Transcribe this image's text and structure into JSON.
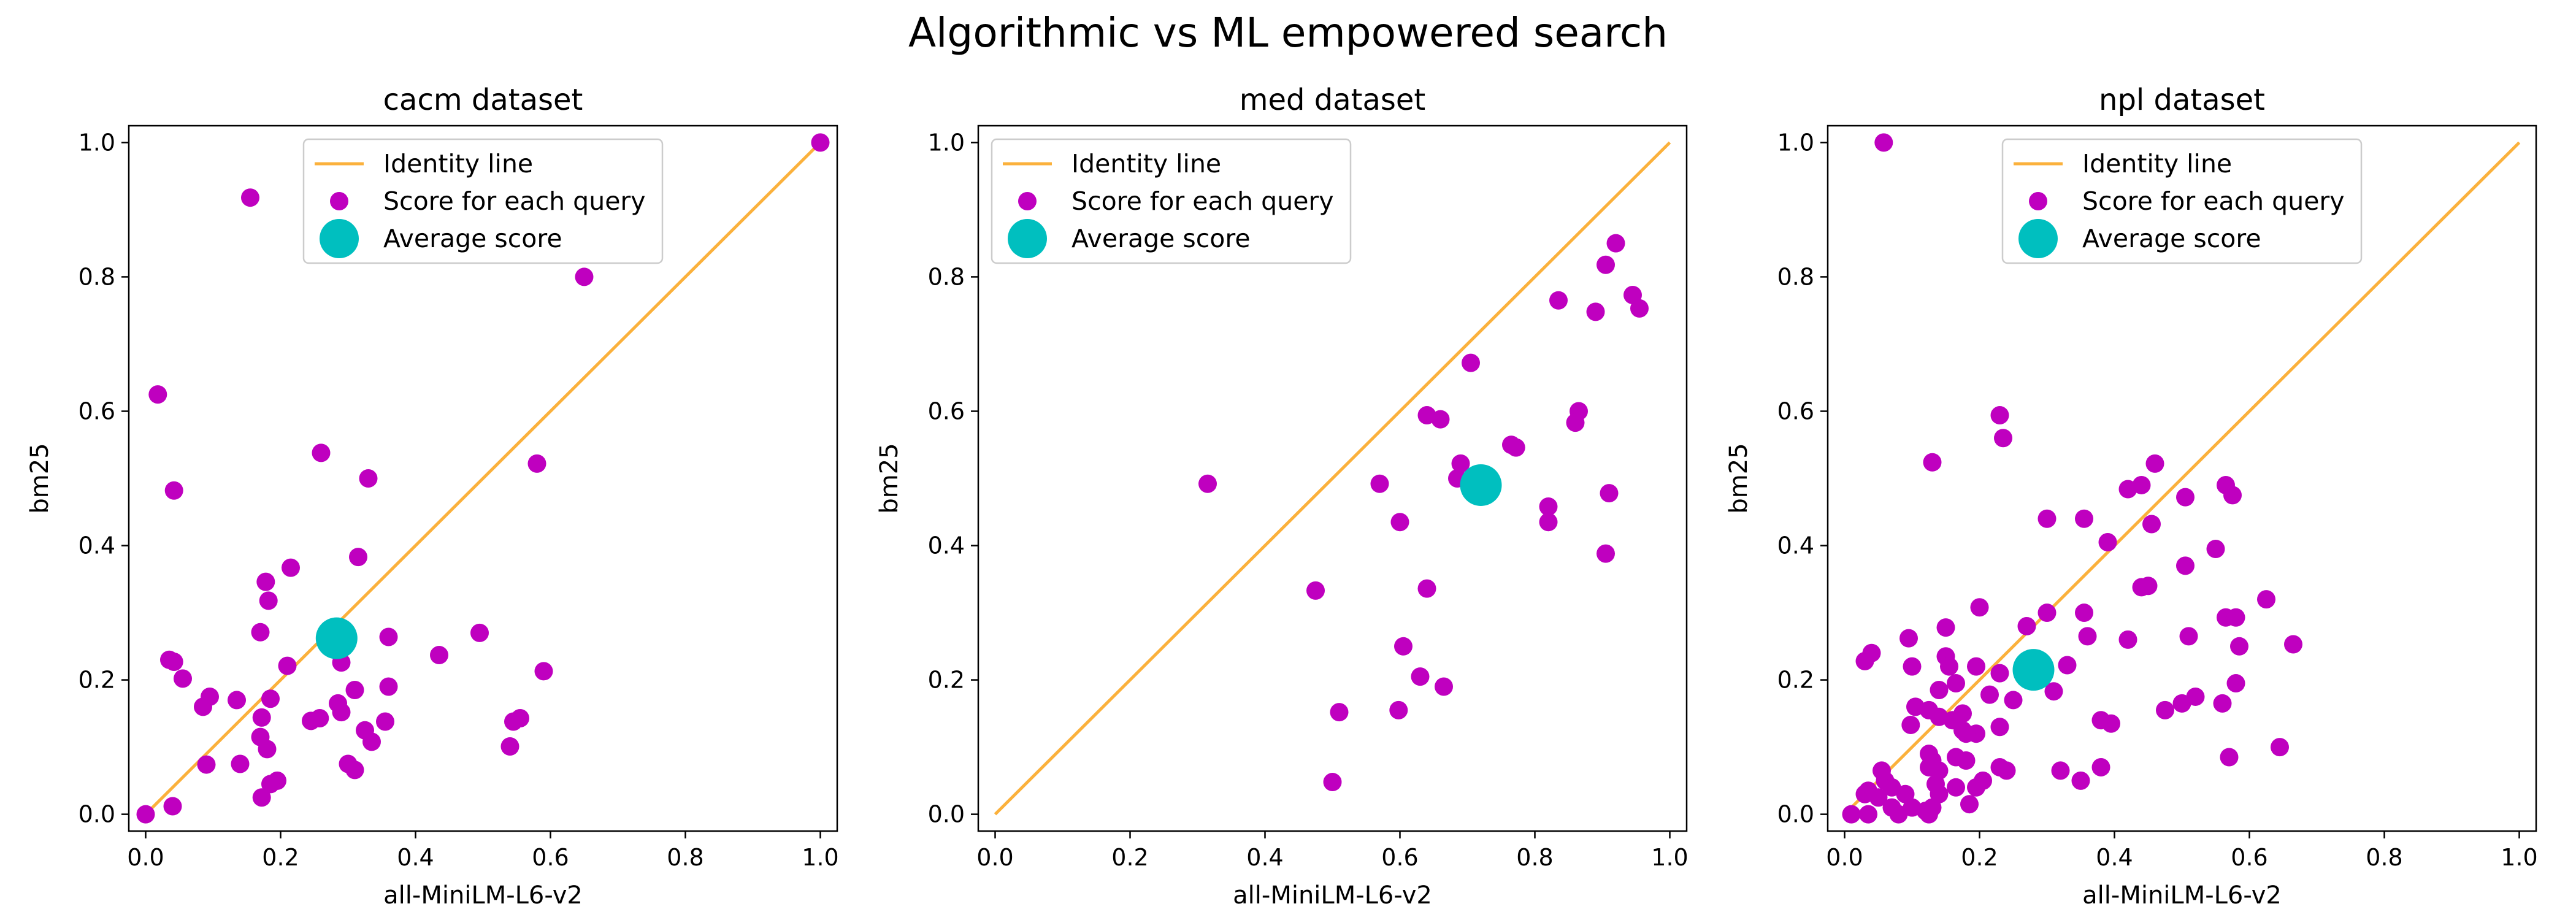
{
  "figure": {
    "title": "Algorithmic vs ML empowered search"
  },
  "colors": {
    "identity": "#FBB13C",
    "scores": "#BF00BF",
    "average": "#00BFBF",
    "frame": "#000000",
    "legend_border": "#CCCCCC"
  },
  "chart_data": [
    {
      "type": "scatter",
      "title": "cacm dataset",
      "xlabel": "all-MiniLM-L6-v2",
      "ylabel": "bm25",
      "xlim": [
        -0.025,
        1.025
      ],
      "ylim": [
        -0.025,
        1.025
      ],
      "xticks": [
        "0.0",
        "0.2",
        "0.4",
        "0.6",
        "0.8",
        "1.0"
      ],
      "yticks": [
        "0.0",
        "0.2",
        "0.4",
        "0.6",
        "0.8",
        "1.0"
      ],
      "grid": false,
      "legend": {
        "placement": "top-center",
        "entries": [
          "Identity line",
          "Score for each query",
          "Average score"
        ]
      },
      "identity_line": {
        "name": "Identity line",
        "points": [
          [
            0,
            0
          ],
          [
            1,
            1
          ]
        ]
      },
      "series": [
        {
          "name": "Score for each query",
          "points": [
            [
              0.0,
              0.0
            ],
            [
              1.0,
              1.0
            ],
            [
              0.155,
              0.918
            ],
            [
              0.65,
              0.8
            ],
            [
              0.018,
              0.625
            ],
            [
              0.042,
              0.482
            ],
            [
              0.26,
              0.538
            ],
            [
              0.33,
              0.5
            ],
            [
              0.58,
              0.522
            ],
            [
              0.315,
              0.383
            ],
            [
              0.215,
              0.367
            ],
            [
              0.178,
              0.346
            ],
            [
              0.182,
              0.318
            ],
            [
              0.17,
              0.271
            ],
            [
              0.36,
              0.264
            ],
            [
              0.495,
              0.27
            ],
            [
              0.435,
              0.237
            ],
            [
              0.035,
              0.23
            ],
            [
              0.042,
              0.227
            ],
            [
              0.055,
              0.202
            ],
            [
              0.21,
              0.221
            ],
            [
              0.29,
              0.226
            ],
            [
              0.59,
              0.213
            ],
            [
              0.36,
              0.19
            ],
            [
              0.31,
              0.185
            ],
            [
              0.135,
              0.17
            ],
            [
              0.095,
              0.175
            ],
            [
              0.085,
              0.16
            ],
            [
              0.185,
              0.172
            ],
            [
              0.285,
              0.165
            ],
            [
              0.172,
              0.144
            ],
            [
              0.245,
              0.139
            ],
            [
              0.258,
              0.143
            ],
            [
              0.29,
              0.152
            ],
            [
              0.355,
              0.138
            ],
            [
              0.545,
              0.138
            ],
            [
              0.555,
              0.143
            ],
            [
              0.17,
              0.115
            ],
            [
              0.18,
              0.097
            ],
            [
              0.325,
              0.125
            ],
            [
              0.335,
              0.108
            ],
            [
              0.54,
              0.101
            ],
            [
              0.09,
              0.074
            ],
            [
              0.14,
              0.075
            ],
            [
              0.3,
              0.075
            ],
            [
              0.31,
              0.066
            ],
            [
              0.195,
              0.05
            ],
            [
              0.185,
              0.045
            ],
            [
              0.172,
              0.025
            ],
            [
              0.04,
              0.012
            ]
          ]
        },
        {
          "name": "Average score",
          "points": [
            [
              0.283,
              0.262
            ]
          ]
        }
      ]
    },
    {
      "type": "scatter",
      "title": "med dataset",
      "xlabel": "all-MiniLM-L6-v2",
      "ylabel": "bm25",
      "xlim": [
        -0.025,
        1.025
      ],
      "ylim": [
        -0.025,
        1.025
      ],
      "xticks": [
        "0.0",
        "0.2",
        "0.4",
        "0.6",
        "0.8",
        "1.0"
      ],
      "yticks": [
        "0.0",
        "0.2",
        "0.4",
        "0.6",
        "0.8",
        "1.0"
      ],
      "grid": false,
      "legend": {
        "placement": "top-left",
        "entries": [
          "Identity line",
          "Score for each query",
          "Average score"
        ]
      },
      "identity_line": {
        "name": "Identity line",
        "points": [
          [
            0,
            0
          ],
          [
            1,
            1
          ]
        ]
      },
      "series": [
        {
          "name": "Score for each query",
          "points": [
            [
              0.92,
              0.85
            ],
            [
              0.905,
              0.818
            ],
            [
              0.945,
              0.773
            ],
            [
              0.955,
              0.753
            ],
            [
              0.835,
              0.765
            ],
            [
              0.89,
              0.748
            ],
            [
              0.705,
              0.672
            ],
            [
              0.64,
              0.594
            ],
            [
              0.66,
              0.588
            ],
            [
              0.865,
              0.6
            ],
            [
              0.86,
              0.583
            ],
            [
              0.765,
              0.55
            ],
            [
              0.772,
              0.546
            ],
            [
              0.69,
              0.522
            ],
            [
              0.685,
              0.5
            ],
            [
              0.57,
              0.492
            ],
            [
              0.315,
              0.492
            ],
            [
              0.91,
              0.478
            ],
            [
              0.82,
              0.458
            ],
            [
              0.82,
              0.435
            ],
            [
              0.6,
              0.435
            ],
            [
              0.905,
              0.388
            ],
            [
              0.64,
              0.336
            ],
            [
              0.475,
              0.333
            ],
            [
              0.605,
              0.25
            ],
            [
              0.63,
              0.205
            ],
            [
              0.665,
              0.19
            ],
            [
              0.51,
              0.152
            ],
            [
              0.598,
              0.155
            ],
            [
              0.5,
              0.048
            ]
          ]
        },
        {
          "name": "Average score",
          "points": [
            [
              0.72,
              0.49
            ]
          ]
        }
      ]
    },
    {
      "type": "scatter",
      "title": "npl dataset",
      "xlabel": "all-MiniLM-L6-v2",
      "ylabel": "bm25",
      "xlim": [
        -0.025,
        1.025
      ],
      "ylim": [
        -0.025,
        1.025
      ],
      "xticks": [
        "0.0",
        "0.2",
        "0.4",
        "0.6",
        "0.8",
        "1.0"
      ],
      "yticks": [
        "0.0",
        "0.2",
        "0.4",
        "0.6",
        "0.8",
        "1.0"
      ],
      "grid": false,
      "legend": {
        "placement": "top-center",
        "entries": [
          "Identity line",
          "Score for each query",
          "Average score"
        ]
      },
      "identity_line": {
        "name": "Identity line",
        "points": [
          [
            0,
            0
          ],
          [
            1,
            1
          ]
        ]
      },
      "series": [
        {
          "name": "Score for each query",
          "points": [
            [
              0.058,
              1.0
            ],
            [
              0.23,
              0.594
            ],
            [
              0.235,
              0.56
            ],
            [
              0.13,
              0.524
            ],
            [
              0.46,
              0.522
            ],
            [
              0.565,
              0.49
            ],
            [
              0.575,
              0.475
            ],
            [
              0.42,
              0.484
            ],
            [
              0.44,
              0.49
            ],
            [
              0.505,
              0.472
            ],
            [
              0.3,
              0.44
            ],
            [
              0.355,
              0.44
            ],
            [
              0.455,
              0.432
            ],
            [
              0.39,
              0.405
            ],
            [
              0.55,
              0.395
            ],
            [
              0.505,
              0.37
            ],
            [
              0.44,
              0.338
            ],
            [
              0.45,
              0.34
            ],
            [
              0.625,
              0.32
            ],
            [
              0.2,
              0.308
            ],
            [
              0.3,
              0.3
            ],
            [
              0.355,
              0.3
            ],
            [
              0.565,
              0.293
            ],
            [
              0.58,
              0.293
            ],
            [
              0.15,
              0.278
            ],
            [
              0.27,
              0.28
            ],
            [
              0.36,
              0.265
            ],
            [
              0.095,
              0.262
            ],
            [
              0.42,
              0.26
            ],
            [
              0.51,
              0.265
            ],
            [
              0.585,
              0.25
            ],
            [
              0.665,
              0.253
            ],
            [
              0.04,
              0.24
            ],
            [
              0.03,
              0.228
            ],
            [
              0.15,
              0.235
            ],
            [
              0.1,
              0.22
            ],
            [
              0.155,
              0.22
            ],
            [
              0.195,
              0.22
            ],
            [
              0.23,
              0.21
            ],
            [
              0.33,
              0.222
            ],
            [
              0.58,
              0.195
            ],
            [
              0.14,
              0.185
            ],
            [
              0.165,
              0.195
            ],
            [
              0.215,
              0.178
            ],
            [
              0.25,
              0.17
            ],
            [
              0.31,
              0.183
            ],
            [
              0.52,
              0.175
            ],
            [
              0.5,
              0.165
            ],
            [
              0.475,
              0.155
            ],
            [
              0.56,
              0.165
            ],
            [
              0.105,
              0.16
            ],
            [
              0.125,
              0.155
            ],
            [
              0.14,
              0.145
            ],
            [
              0.16,
              0.14
            ],
            [
              0.175,
              0.15
            ],
            [
              0.195,
              0.12
            ],
            [
              0.23,
              0.13
            ],
            [
              0.38,
              0.14
            ],
            [
              0.395,
              0.135
            ],
            [
              0.098,
              0.133
            ],
            [
              0.175,
              0.125
            ],
            [
              0.18,
              0.12
            ],
            [
              0.125,
              0.09
            ],
            [
              0.13,
              0.08
            ],
            [
              0.125,
              0.07
            ],
            [
              0.14,
              0.065
            ],
            [
              0.165,
              0.085
            ],
            [
              0.18,
              0.08
            ],
            [
              0.23,
              0.07
            ],
            [
              0.24,
              0.065
            ],
            [
              0.32,
              0.065
            ],
            [
              0.38,
              0.07
            ],
            [
              0.57,
              0.085
            ],
            [
              0.645,
              0.1
            ],
            [
              0.055,
              0.065
            ],
            [
              0.06,
              0.05
            ],
            [
              0.07,
              0.04
            ],
            [
              0.09,
              0.03
            ],
            [
              0.135,
              0.045
            ],
            [
              0.14,
              0.03
            ],
            [
              0.165,
              0.04
            ],
            [
              0.195,
              0.04
            ],
            [
              0.205,
              0.05
            ],
            [
              0.03,
              0.03
            ],
            [
              0.035,
              0.035
            ],
            [
              0.05,
              0.025
            ],
            [
              0.07,
              0.01
            ],
            [
              0.08,
              0.0
            ],
            [
              0.1,
              0.01
            ],
            [
              0.12,
              0.005
            ],
            [
              0.125,
              0.0
            ],
            [
              0.13,
              0.01
            ],
            [
              0.01,
              0.0
            ],
            [
              0.035,
              0.0
            ],
            [
              0.185,
              0.015
            ],
            [
              0.35,
              0.05
            ]
          ]
        },
        {
          "name": "Average score",
          "points": [
            [
              0.28,
              0.215
            ]
          ]
        }
      ]
    }
  ]
}
